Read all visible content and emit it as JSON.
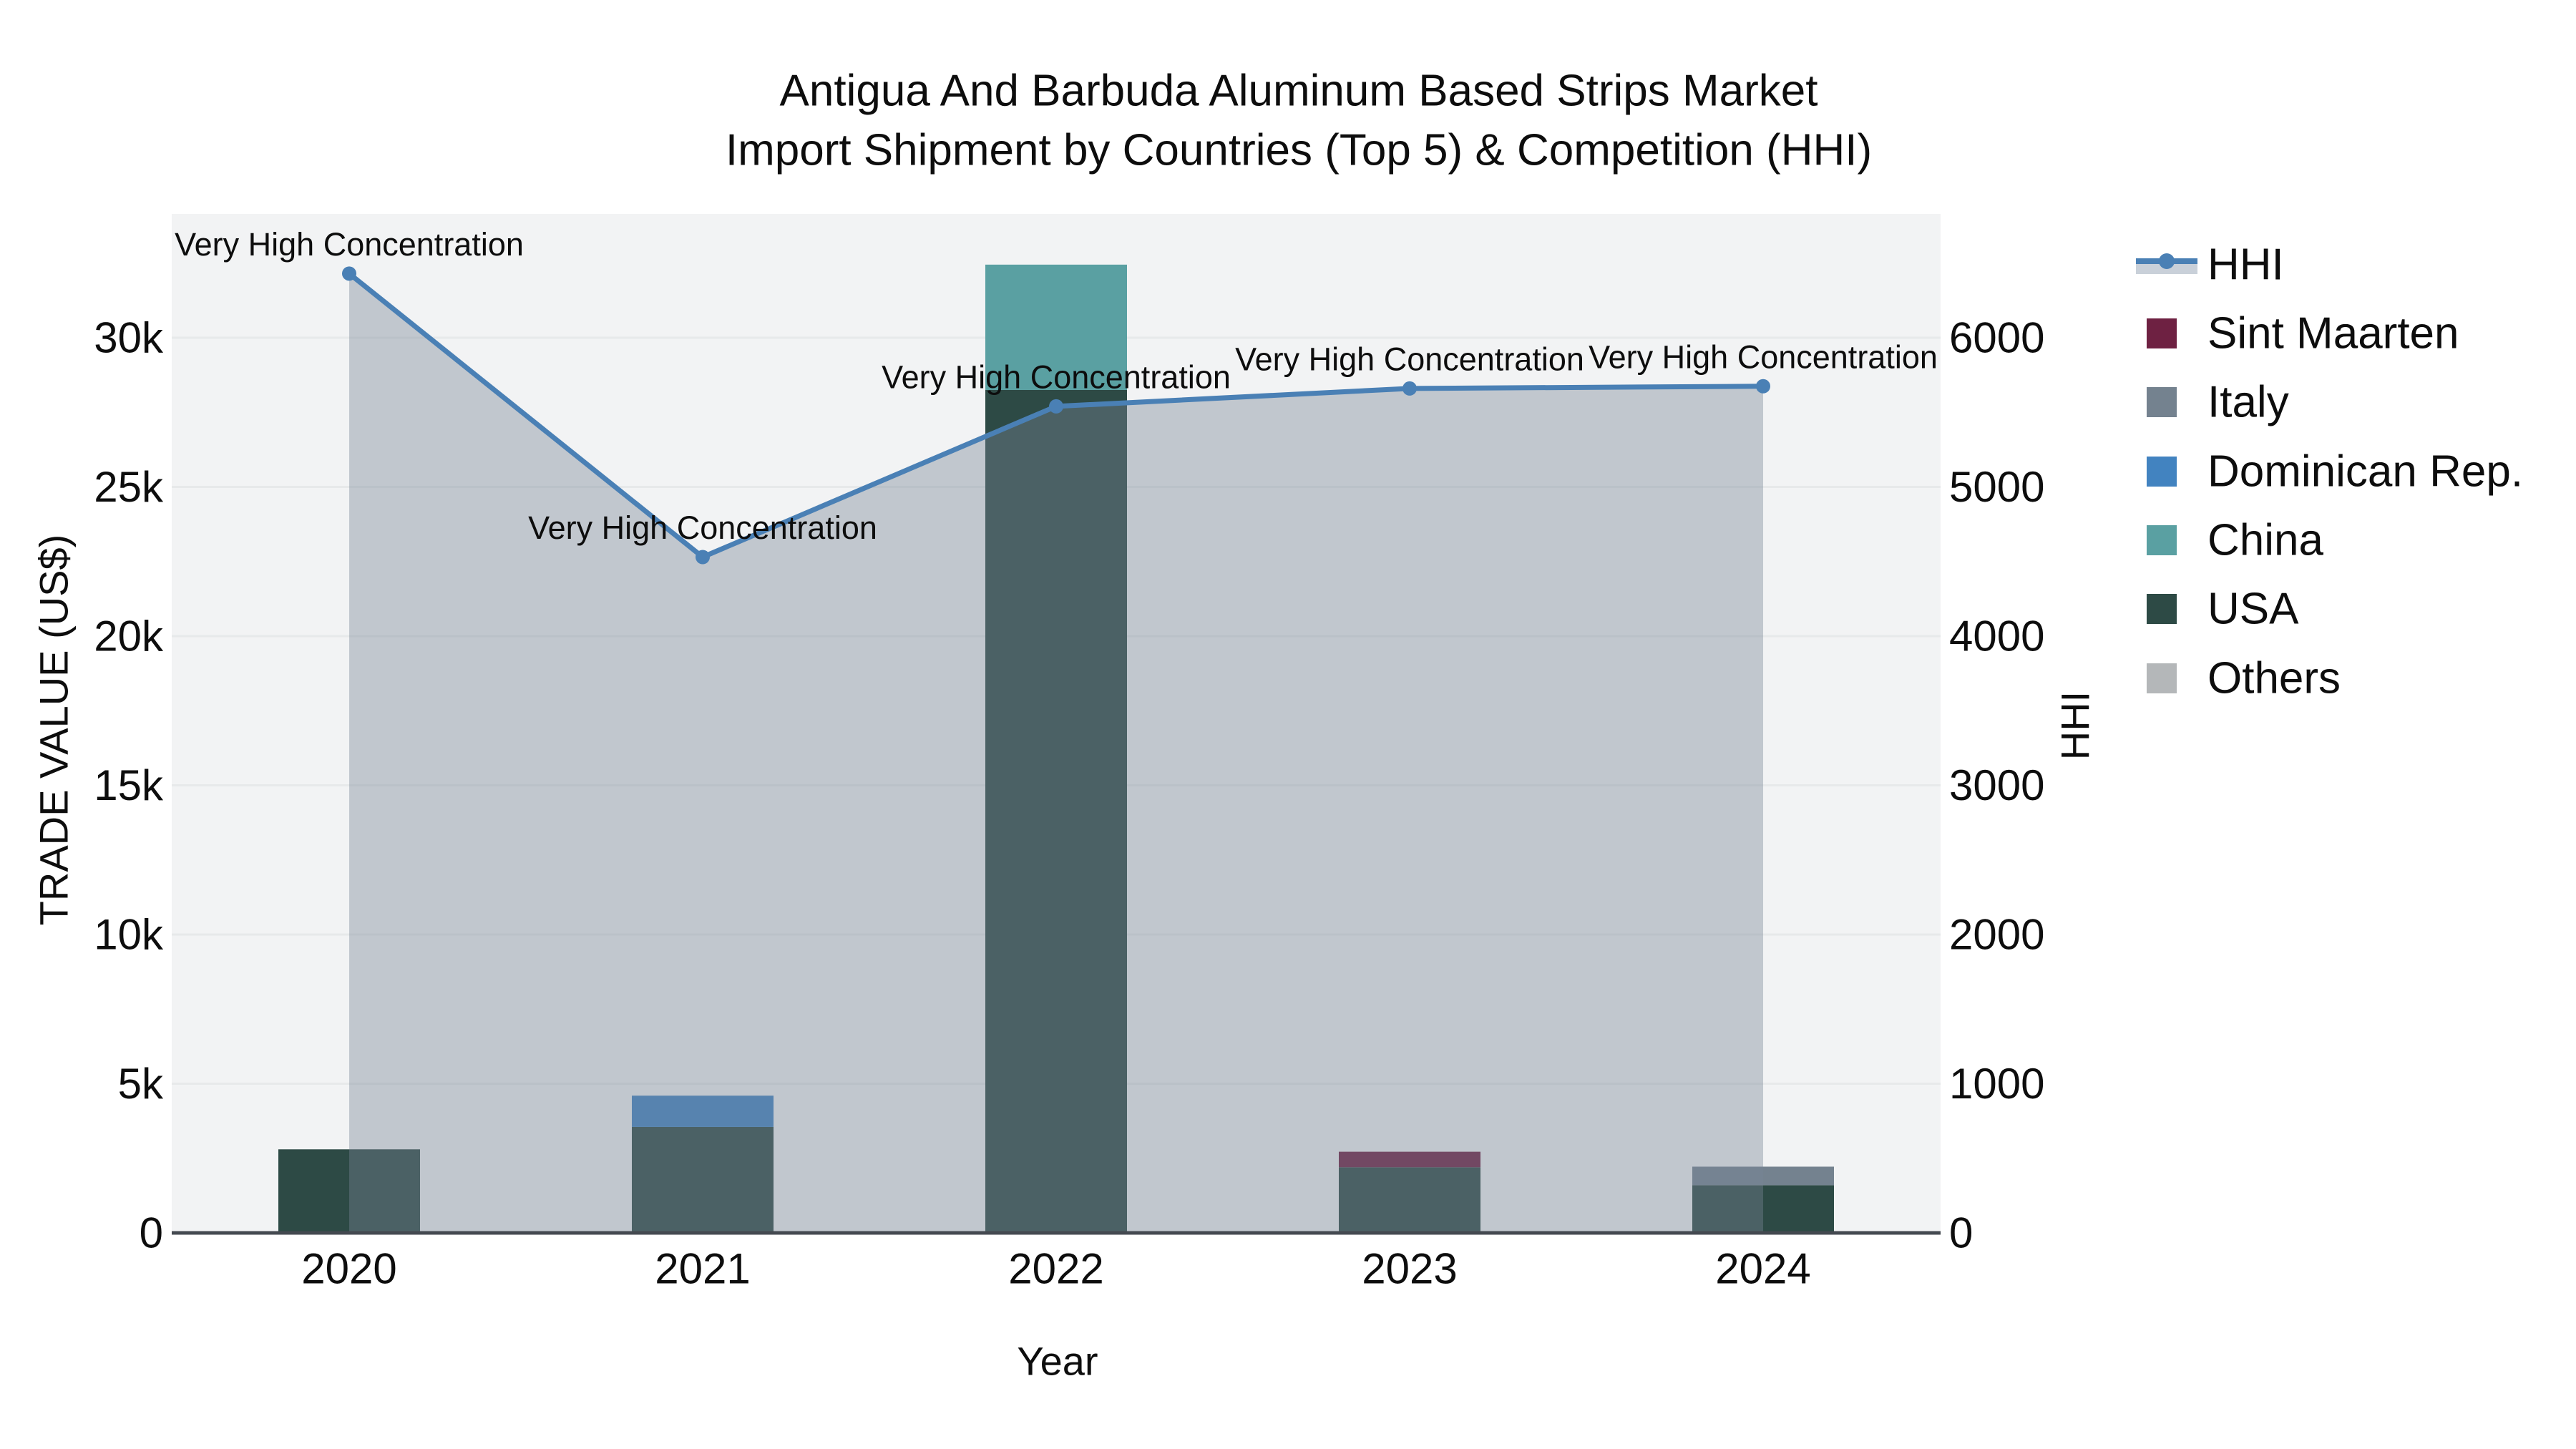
{
  "title": {
    "line1": "Antigua And Barbuda Aluminum Based Strips Market",
    "line2": "Import Shipment by Countries (Top 5) & Competition (HHI)"
  },
  "axes": {
    "x": {
      "title": "Year",
      "categories": [
        "2020",
        "2021",
        "2022",
        "2023",
        "2024"
      ]
    },
    "left": {
      "title": "TRADE VALUE (US$)",
      "tick_labels": [
        "0",
        "5k",
        "10k",
        "15k",
        "20k",
        "25k",
        "30k"
      ],
      "tick_values": [
        0,
        5000,
        10000,
        15000,
        20000,
        25000,
        30000
      ],
      "range": [
        0,
        34150
      ]
    },
    "right": {
      "title": "HHI",
      "tick_labels": [
        "0",
        "1000",
        "2000",
        "3000",
        "4000",
        "5000",
        "6000"
      ],
      "tick_values": [
        0,
        1000,
        2000,
        3000,
        4000,
        5000,
        6000
      ],
      "range": [
        0,
        6830
      ]
    }
  },
  "legend": {
    "items": [
      {
        "label": "HHI",
        "type": "line",
        "color": "#4a80b5",
        "band_color": "#c9d0d9"
      },
      {
        "label": "Sint Maarten",
        "type": "swatch",
        "color": "#6e2142"
      },
      {
        "label": "Italy",
        "type": "swatch",
        "color": "#74828f"
      },
      {
        "label": "Dominican Rep.",
        "type": "swatch",
        "color": "#4283c0"
      },
      {
        "label": "China",
        "type": "swatch",
        "color": "#5aa0a2"
      },
      {
        "label": "USA",
        "type": "swatch",
        "color": "#2d4a45"
      },
      {
        "label": "Others",
        "type": "swatch",
        "color": "#b4b7b9"
      }
    ]
  },
  "chart_data": {
    "type": "combo: stacked bar (left axis) + line with area fill (right axis)",
    "categories": [
      "2020",
      "2021",
      "2022",
      "2023",
      "2024"
    ],
    "title": "Antigua And Barbuda Aluminum Based Strips Market Import Shipment by Countries (Top 5) & Competition (HHI)",
    "xlabel": "Year",
    "ylabel_left": "TRADE VALUE (US$)",
    "ylabel_right": "HHI",
    "grid": "horizontal, every 5k, very light",
    "legend_position": "right, vertical",
    "bar_stack_order_bottom_to_top": [
      "Others",
      "USA",
      "China",
      "Dominican Rep.",
      "Italy",
      "Sint Maarten"
    ],
    "series": [
      {
        "name": "Others",
        "axis": "left",
        "values": [
          0,
          0,
          0,
          0,
          0
        ]
      },
      {
        "name": "USA",
        "axis": "left",
        "values": [
          2800,
          3550,
          28250,
          2200,
          1600
        ]
      },
      {
        "name": "China",
        "axis": "left",
        "values": [
          0,
          0,
          4200,
          0,
          0
        ]
      },
      {
        "name": "Dominican Rep.",
        "axis": "left",
        "values": [
          0,
          1050,
          0,
          0,
          0
        ]
      },
      {
        "name": "Italy",
        "axis": "left",
        "values": [
          0,
          0,
          0,
          0,
          620
        ]
      },
      {
        "name": "Sint Maarten",
        "axis": "left",
        "values": [
          0,
          0,
          0,
          520,
          0
        ]
      }
    ],
    "line_series": {
      "name": "HHI",
      "axis": "right",
      "values": [
        6430,
        4530,
        5540,
        5660,
        5675
      ],
      "annotations": [
        "Very High Concentration",
        "Very High Concentration",
        "Very High Concentration",
        "Very High Concentration",
        "Very High Concentration"
      ]
    }
  },
  "colors": {
    "plot_background": "#f2f3f4",
    "gridline": "#e7e9ea",
    "axis_line": "#444950",
    "hhi_line": "#4a80b5",
    "hhi_fill": "rgba(120,132,150,0.40)",
    "USA": "#2d4a45",
    "China": "#5aa0a2",
    "Dominican Rep.": "#4283c0",
    "Italy": "#74828f",
    "Sint Maarten": "#6e2142",
    "Others": "#b4b7b9"
  }
}
